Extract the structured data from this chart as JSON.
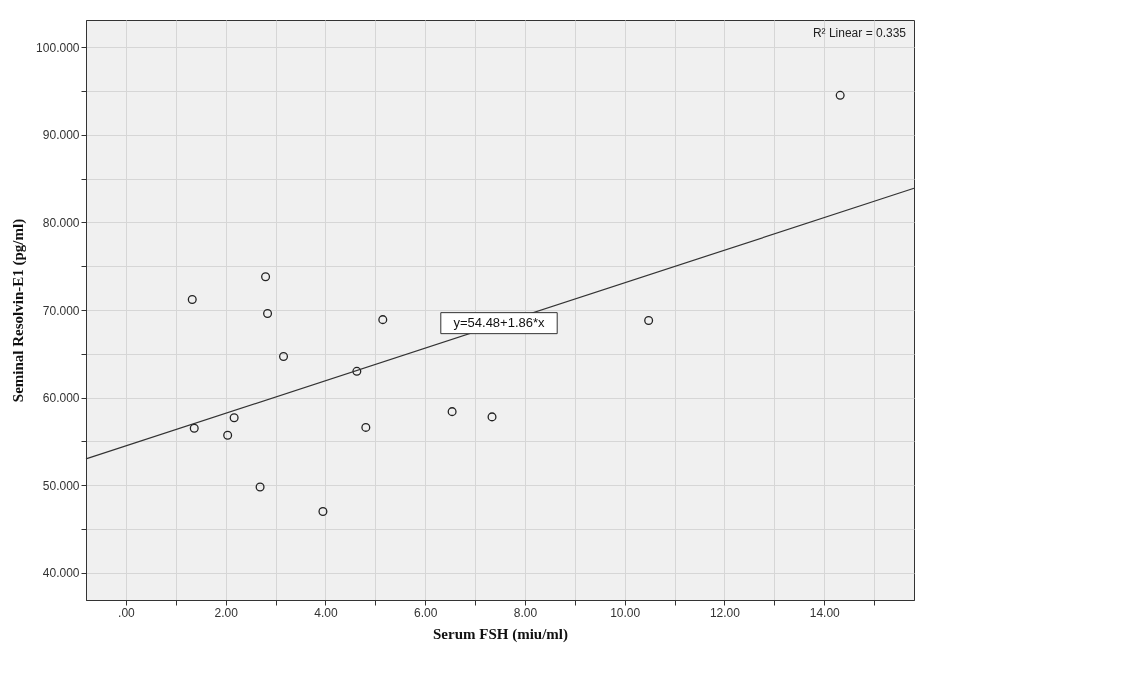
{
  "chart_data": {
    "type": "scatter",
    "xlabel": "Serum FSH (miu/ml)",
    "ylabel": "Seminal Resolvin-E1 (pg/ml)",
    "xlim": [
      -0.8,
      15.8
    ],
    "ylim": [
      36.9,
      103.1
    ],
    "xticks": [
      {
        "value": 0,
        "label": ".00"
      },
      {
        "value": 1,
        "label": null
      },
      {
        "value": 2,
        "label": "2.00"
      },
      {
        "value": 3,
        "label": null
      },
      {
        "value": 4,
        "label": "4.00"
      },
      {
        "value": 5,
        "label": null
      },
      {
        "value": 6,
        "label": "6.00"
      },
      {
        "value": 7,
        "label": null
      },
      {
        "value": 8,
        "label": "8.00"
      },
      {
        "value": 9,
        "label": null
      },
      {
        "value": 10,
        "label": "10.00"
      },
      {
        "value": 11,
        "label": null
      },
      {
        "value": 12,
        "label": "12.00"
      },
      {
        "value": 13,
        "label": null
      },
      {
        "value": 14,
        "label": "14.00"
      },
      {
        "value": 15,
        "label": null
      }
    ],
    "yticks": [
      {
        "value": 40,
        "label": "40.000"
      },
      {
        "value": 45,
        "label": null
      },
      {
        "value": 50,
        "label": "50.000"
      },
      {
        "value": 55,
        "label": null
      },
      {
        "value": 60,
        "label": "60.000"
      },
      {
        "value": 65,
        "label": null
      },
      {
        "value": 70,
        "label": "70.000"
      },
      {
        "value": 75,
        "label": null
      },
      {
        "value": 80,
        "label": "80.000"
      },
      {
        "value": 85,
        "label": null
      },
      {
        "value": 90,
        "label": "90.000"
      },
      {
        "value": 95,
        "label": null
      },
      {
        "value": 100,
        "label": "100.000"
      }
    ],
    "grid": true,
    "marker": "circle",
    "series": [
      {
        "color": "#222222",
        "x": [
          14.32,
          1.33,
          2.8,
          2.84,
          5.15,
          10.48,
          3.16,
          4.63,
          1.37,
          2.17,
          2.04,
          4.81,
          6.54,
          7.34,
          2.69,
          3.95
        ],
        "values": [
          94.5,
          71.2,
          73.8,
          69.6,
          68.9,
          68.8,
          64.7,
          63.0,
          56.5,
          57.7,
          55.7,
          56.6,
          58.4,
          57.8,
          49.8,
          47.0
        ]
      },
      {
        "type": "line",
        "marker": "none",
        "color": "#333333",
        "x": [
          -0.8,
          15.8
        ],
        "values": [
          53.0,
          83.9
        ]
      }
    ],
    "annotations": [
      "R² Linear = 0.335",
      {
        "text": "y=54.48+1.86*x",
        "x": 7.48,
        "y": 68.5
      }
    ]
  }
}
